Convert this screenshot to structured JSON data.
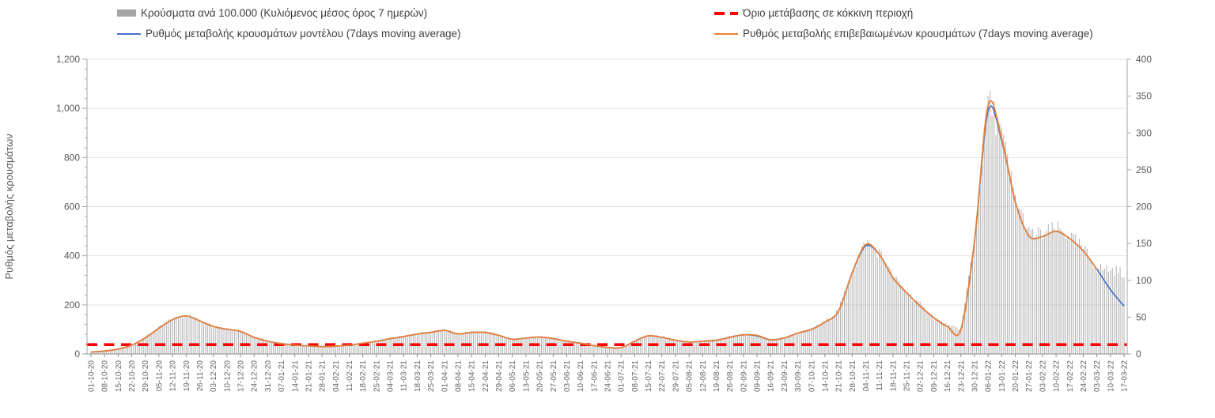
{
  "legend": {
    "items": [
      {
        "label": "Κρούσματα ανά 100.000 (Κυλιόμενος μέσος όρος 7 ημερών)",
        "marker": "gray-bar-swatch",
        "color": "#A6A6A6"
      },
      {
        "label": "Όριο μετάβασης σε κόκκινη περιοχή",
        "marker": "red-dashed-line",
        "color": "#FF0000"
      },
      {
        "label": "Ρυθμός μεταβολής κρουσμάτων μοντέλου (7days moving average)",
        "marker": "blue-line",
        "color": "#4472C4"
      },
      {
        "label": "Ρυθμός μεταβολής επιβεβαιωμένων κρουσμάτων (7days moving average)",
        "marker": "orange-line",
        "color": "#ED7D31"
      }
    ]
  },
  "chart_data": {
    "type": "line+bar",
    "title": "",
    "xlabel": "",
    "grid": "horizontal",
    "left_axis": {
      "title": "Ρυθμός μεταβολής κρουσμάτων",
      "min": 0,
      "max": 1200,
      "major": 200,
      "minor": 40,
      "ticks": [
        "0",
        "200",
        "400",
        "600",
        "800",
        "1,000",
        "1,200"
      ]
    },
    "right_axis": {
      "min": 0,
      "max": 400,
      "major": 50,
      "ticks": [
        "0",
        "50",
        "100",
        "150",
        "200",
        "250",
        "300",
        "350",
        "400"
      ]
    },
    "x": [
      "01-10-20",
      "08-10-20",
      "15-10-20",
      "22-10-20",
      "29-10-20",
      "05-11-20",
      "12-11-20",
      "19-11-20",
      "26-11-20",
      "03-12-20",
      "10-12-20",
      "17-12-20",
      "24-12-20",
      "31-12-20",
      "07-01-21",
      "14-01-21",
      "21-01-21",
      "28-01-21",
      "04-02-21",
      "11-02-21",
      "18-02-21",
      "25-02-21",
      "04-03-21",
      "11-03-21",
      "18-03-21",
      "25-03-21",
      "01-04-21",
      "08-04-21",
      "15-04-21",
      "22-04-21",
      "29-04-21",
      "06-05-21",
      "13-05-21",
      "20-05-21",
      "27-05-21",
      "03-06-21",
      "10-06-21",
      "17-06-21",
      "24-06-21",
      "01-07-21",
      "08-07-21",
      "15-07-21",
      "22-07-21",
      "29-07-21",
      "05-08-21",
      "12-08-21",
      "19-08-21",
      "26-08-21",
      "02-09-21",
      "09-09-21",
      "16-09-21",
      "23-09-21",
      "30-09-21",
      "07-10-21",
      "14-10-21",
      "21-10-21",
      "28-10-21",
      "04-11-21",
      "11-11-21",
      "18-11-21",
      "25-11-21",
      "02-12-21",
      "09-12-21",
      "16-12-21",
      "23-12-21",
      "30-12-21",
      "06-01-22",
      "13-01-22",
      "20-01-22",
      "27-01-22",
      "03-02-22",
      "10-02-22",
      "17-02-22",
      "24-02-22",
      "03-03-22",
      "10-03-22",
      "17-03-22"
    ],
    "series": [
      {
        "name": "Κρούσματα ανά 100.000 (Κυλιόμενος μέσος όρος 7 ημερών)",
        "type": "bar",
        "axis": "right",
        "color": "#B3B3B3",
        "values": [
          3,
          4,
          7,
          12,
          22,
          35,
          47,
          52,
          45,
          37,
          34,
          31,
          23,
          17,
          14,
          12,
          11,
          10,
          11,
          12,
          15,
          17,
          21,
          24,
          27,
          29,
          32,
          27,
          29,
          29,
          25,
          20,
          22,
          23,
          21,
          17,
          15,
          11,
          9,
          9,
          17,
          25,
          23,
          19,
          16,
          17,
          19,
          23,
          26,
          25,
          19,
          22,
          28,
          33,
          43,
          58,
          110,
          149,
          135,
          103,
          83,
          65,
          49,
          37,
          33,
          153,
          337,
          293,
          207,
          160,
          159,
          167,
          157,
          140,
          115,
          112,
          108
        ]
      },
      {
        "name": "Ρυθμός μεταβολής κρουσμάτων μοντέλου (7days moving average)",
        "type": "line",
        "axis": "left",
        "color": "#4472C4",
        "values": [
          8,
          12,
          20,
          36,
          66,
          105,
          140,
          155,
          135,
          112,
          101,
          92,
          68,
          52,
          42,
          36,
          33,
          30,
          32,
          36,
          44,
          52,
          62,
          71,
          81,
          88,
          96,
          82,
          88,
          88,
          76,
          60,
          65,
          69,
          63,
          52,
          44,
          34,
          27,
          26,
          52,
          74,
          68,
          56,
          49,
          52,
          56,
          68,
          78,
          74,
          58,
          65,
          85,
          100,
          130,
          175,
          330,
          440,
          405,
          310,
          250,
          195,
          148,
          112,
          100,
          460,
          990,
          870,
          620,
          481,
          478,
          500,
          470,
          420,
          345,
          262,
          195
        ]
      },
      {
        "name": "Ρυθμός μεταβολής επιβεβαιωμένων κρουσμάτων (7days moving average)",
        "type": "line",
        "axis": "left",
        "color": "#ED7D31",
        "values": [
          8,
          12,
          20,
          36,
          66,
          105,
          140,
          155,
          135,
          112,
          101,
          92,
          68,
          52,
          42,
          36,
          33,
          30,
          32,
          36,
          44,
          52,
          62,
          71,
          81,
          88,
          96,
          82,
          88,
          88,
          76,
          60,
          65,
          69,
          63,
          52,
          44,
          34,
          27,
          26,
          52,
          74,
          68,
          56,
          49,
          52,
          56,
          68,
          78,
          76,
          58,
          65,
          85,
          100,
          130,
          175,
          330,
          446,
          405,
          310,
          250,
          195,
          148,
          112,
          100,
          460,
          1012,
          878,
          620,
          481,
          478,
          500,
          470,
          420,
          345,
          null,
          null
        ]
      }
    ],
    "threshold": {
      "name": "Όριο μετάβασης σε κόκκινη περιοχή",
      "axis": "left",
      "value": 38,
      "color": "#FF0000"
    }
  }
}
